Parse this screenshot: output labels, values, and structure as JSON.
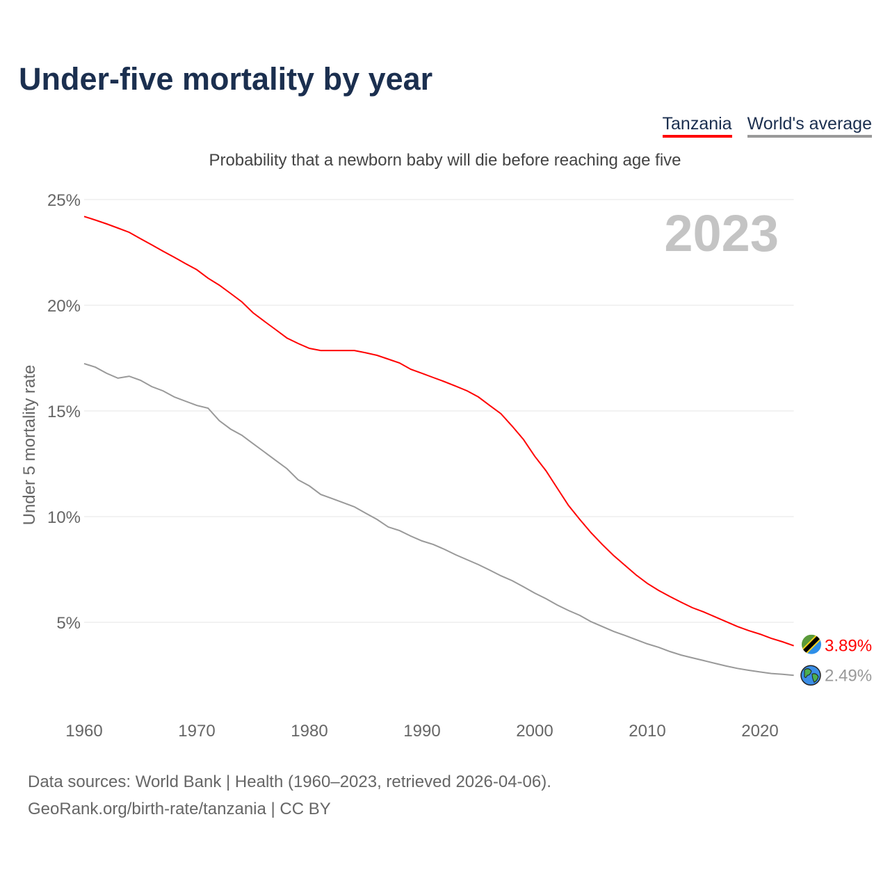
{
  "title": "Under-five mortality by year",
  "legend": [
    "Tanzania",
    "World's average"
  ],
  "subtitle": "Probability that a newborn baby will die before reaching age five",
  "year_label": "2023",
  "footer": [
    "Data sources: World Bank | Health (1960–2023, retrieved 2026-04-06).",
    "GeoRank.org/birth-rate/tanzania | CC BY"
  ],
  "colors": {
    "tanzania": "#ff0000",
    "world": "#999999"
  },
  "chart_data": {
    "type": "line",
    "title": "Under-five mortality by year",
    "xlabel": "",
    "ylabel": "Under 5 mortality rate",
    "xlim": [
      1960,
      2023
    ],
    "ylim": [
      0,
      25
    ],
    "xticks": [
      1960,
      1970,
      1980,
      1990,
      2000,
      2010,
      2020
    ],
    "yticks": [
      5,
      10,
      15,
      20,
      25
    ],
    "ytick_labels": [
      "5%",
      "10%",
      "15%",
      "20%",
      "25%"
    ],
    "grid": true,
    "legend_position": "top-right",
    "end_labels": [
      "3.89%",
      "2.49%"
    ],
    "x": [
      1960,
      1961,
      1962,
      1963,
      1964,
      1965,
      1966,
      1967,
      1968,
      1969,
      1970,
      1971,
      1972,
      1973,
      1974,
      1975,
      1976,
      1977,
      1978,
      1979,
      1980,
      1981,
      1982,
      1983,
      1984,
      1985,
      1986,
      1987,
      1988,
      1989,
      1990,
      1991,
      1992,
      1993,
      1994,
      1995,
      1996,
      1997,
      1998,
      1999,
      2000,
      2001,
      2002,
      2003,
      2004,
      2005,
      2006,
      2007,
      2008,
      2009,
      2010,
      2011,
      2012,
      2013,
      2014,
      2015,
      2016,
      2017,
      2018,
      2019,
      2020,
      2021,
      2022,
      2023
    ],
    "series": [
      {
        "name": "Tanzania",
        "values": [
          24.2,
          24.03,
          23.85,
          23.65,
          23.45,
          23.15,
          22.86,
          22.56,
          22.27,
          21.97,
          21.68,
          21.28,
          20.95,
          20.56,
          20.16,
          19.64,
          19.24,
          18.85,
          18.45,
          18.19,
          17.96,
          17.86,
          17.86,
          17.86,
          17.86,
          17.75,
          17.63,
          17.45,
          17.27,
          16.97,
          16.78,
          16.58,
          16.38,
          16.17,
          15.95,
          15.66,
          15.26,
          14.87,
          14.28,
          13.65,
          12.86,
          12.17,
          11.35,
          10.53,
          9.87,
          9.24,
          8.68,
          8.16,
          7.7,
          7.24,
          6.84,
          6.51,
          6.22,
          5.95,
          5.69,
          5.49,
          5.26,
          5.03,
          4.8,
          4.61,
          4.44,
          4.24,
          4.08,
          3.89
        ]
      },
      {
        "name": "World's average",
        "values": [
          17.24,
          17.07,
          16.78,
          16.55,
          16.64,
          16.45,
          16.15,
          15.95,
          15.66,
          15.46,
          15.26,
          15.13,
          14.54,
          14.14,
          13.85,
          13.45,
          13.06,
          12.66,
          12.27,
          11.74,
          11.45,
          11.05,
          10.86,
          10.66,
          10.46,
          10.16,
          9.87,
          9.51,
          9.34,
          9.08,
          8.85,
          8.68,
          8.45,
          8.19,
          7.96,
          7.73,
          7.47,
          7.2,
          6.97,
          6.68,
          6.38,
          6.12,
          5.82,
          5.56,
          5.33,
          5.03,
          4.8,
          4.57,
          4.38,
          4.18,
          3.98,
          3.82,
          3.62,
          3.45,
          3.32,
          3.19,
          3.06,
          2.93,
          2.82,
          2.73,
          2.65,
          2.58,
          2.54,
          2.49
        ]
      }
    ]
  }
}
